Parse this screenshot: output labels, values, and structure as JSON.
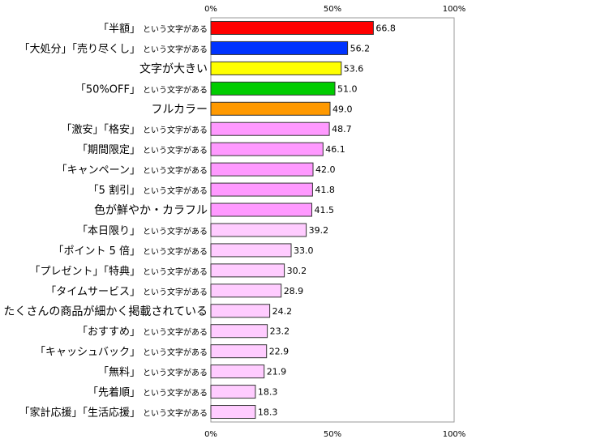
{
  "chart_data": {
    "type": "bar",
    "orientation": "horizontal",
    "xlim": [
      0,
      100
    ],
    "x_ticks": [
      "0%",
      "50%",
      "100%"
    ],
    "grid": false,
    "data_labels": true,
    "legend": "none",
    "categories": [
      {
        "main": "「半額」",
        "suffix": "という文字がある"
      },
      {
        "main": "「大処分」「売り尽くし」",
        "suffix": "という文字がある"
      },
      {
        "main": "文字が大きい",
        "suffix": ""
      },
      {
        "main": "「50%OFF」",
        "suffix": "という文字がある"
      },
      {
        "main": "フルカラー",
        "suffix": ""
      },
      {
        "main": "「激安」「格安」",
        "suffix": "という文字がある"
      },
      {
        "main": "「期間限定」",
        "suffix": "という文字がある"
      },
      {
        "main": "「キャンペーン」",
        "suffix": "という文字がある"
      },
      {
        "main": "「5 割引」",
        "suffix": "という文字がある"
      },
      {
        "main": "色が鮮やか・カラフル",
        "suffix": ""
      },
      {
        "main": "「本日限り」",
        "suffix": "という文字がある"
      },
      {
        "main": "「ポイント 5 倍」",
        "suffix": "という文字がある"
      },
      {
        "main": "「プレゼント」「特典」",
        "suffix": "という文字がある"
      },
      {
        "main": "「タイムサービス」",
        "suffix": "という文字がある"
      },
      {
        "main": "たくさんの商品が細かく掲載されている",
        "suffix": ""
      },
      {
        "main": "「おすすめ」",
        "suffix": "という文字がある"
      },
      {
        "main": "「キャッシュバック」",
        "suffix": "という文字がある"
      },
      {
        "main": "「無料」",
        "suffix": "という文字がある"
      },
      {
        "main": "「先着順」",
        "suffix": "という文字がある"
      },
      {
        "main": "「家計応援」「生活応援」",
        "suffix": "という文字がある"
      }
    ],
    "values": [
      66.8,
      56.2,
      53.6,
      51.0,
      49.0,
      48.7,
      46.1,
      42.0,
      41.8,
      41.5,
      39.2,
      33.0,
      30.2,
      28.9,
      24.2,
      23.2,
      22.9,
      21.9,
      18.3,
      18.3
    ],
    "value_labels": [
      "66.8",
      "56.2",
      "53.6",
      "51.0",
      "49.0",
      "48.7",
      "46.1",
      "42.0",
      "41.8",
      "41.5",
      "39.2",
      "33.0",
      "30.2",
      "28.9",
      "24.2",
      "23.2",
      "22.9",
      "21.9",
      "18.3",
      "18.3"
    ],
    "bar_colors": [
      "#ff0000",
      "#0033ff",
      "#ffff00",
      "#00cc00",
      "#ff9900",
      "#ff99ff",
      "#ff99ff",
      "#ff99ff",
      "#ff99ff",
      "#ff99ff",
      "#ffccff",
      "#ffccff",
      "#ffccff",
      "#ffccff",
      "#ffccff",
      "#ffccff",
      "#ffccff",
      "#ffccff",
      "#ffccff",
      "#ffccff"
    ],
    "bar_outline_color": "#333333",
    "frame_color": "#999999"
  }
}
